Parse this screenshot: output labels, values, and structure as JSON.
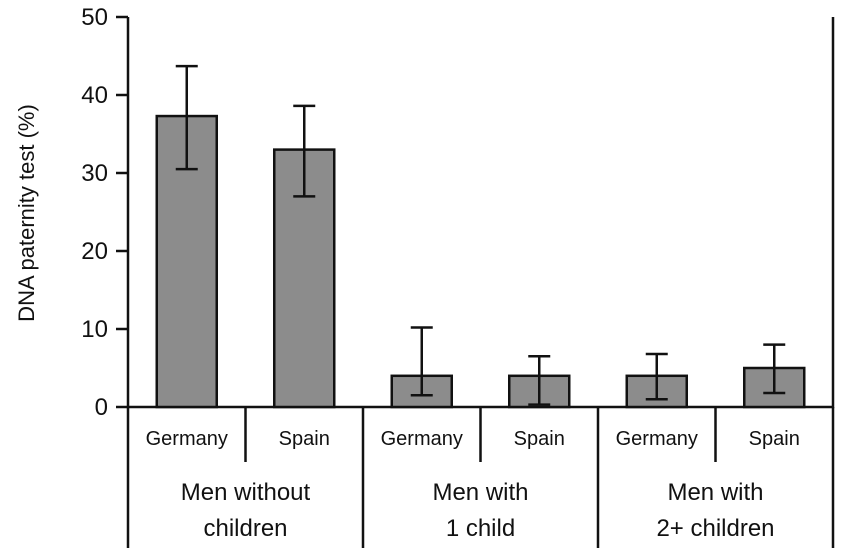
{
  "chart_data": {
    "type": "bar",
    "ylabel": "DNA paternity test (%)",
    "ylim": [
      0,
      50
    ],
    "yticks": [
      0,
      10,
      20,
      30,
      40,
      50
    ],
    "grid": false,
    "bar_color": "#8c8c8c",
    "groups": [
      {
        "label_lines": [
          "Men without",
          "children"
        ],
        "bars": [
          {
            "category": "Germany",
            "value": 37.3,
            "err_low": 30.5,
            "err_high": 43.7
          },
          {
            "category": "Spain",
            "value": 33.0,
            "err_low": 27.0,
            "err_high": 38.6
          }
        ]
      },
      {
        "label_lines": [
          "Men with",
          "1 child"
        ],
        "bars": [
          {
            "category": "Germany",
            "value": 4.0,
            "err_low": 1.5,
            "err_high": 10.2
          },
          {
            "category": "Spain",
            "value": 4.0,
            "err_low": 0.3,
            "err_high": 6.5
          }
        ]
      },
      {
        "label_lines": [
          "Men with",
          "2+ children"
        ],
        "bars": [
          {
            "category": "Germany",
            "value": 4.0,
            "err_low": 1.0,
            "err_high": 6.8
          },
          {
            "category": "Spain",
            "value": 5.0,
            "err_low": 1.8,
            "err_high": 8.0
          }
        ]
      }
    ]
  }
}
